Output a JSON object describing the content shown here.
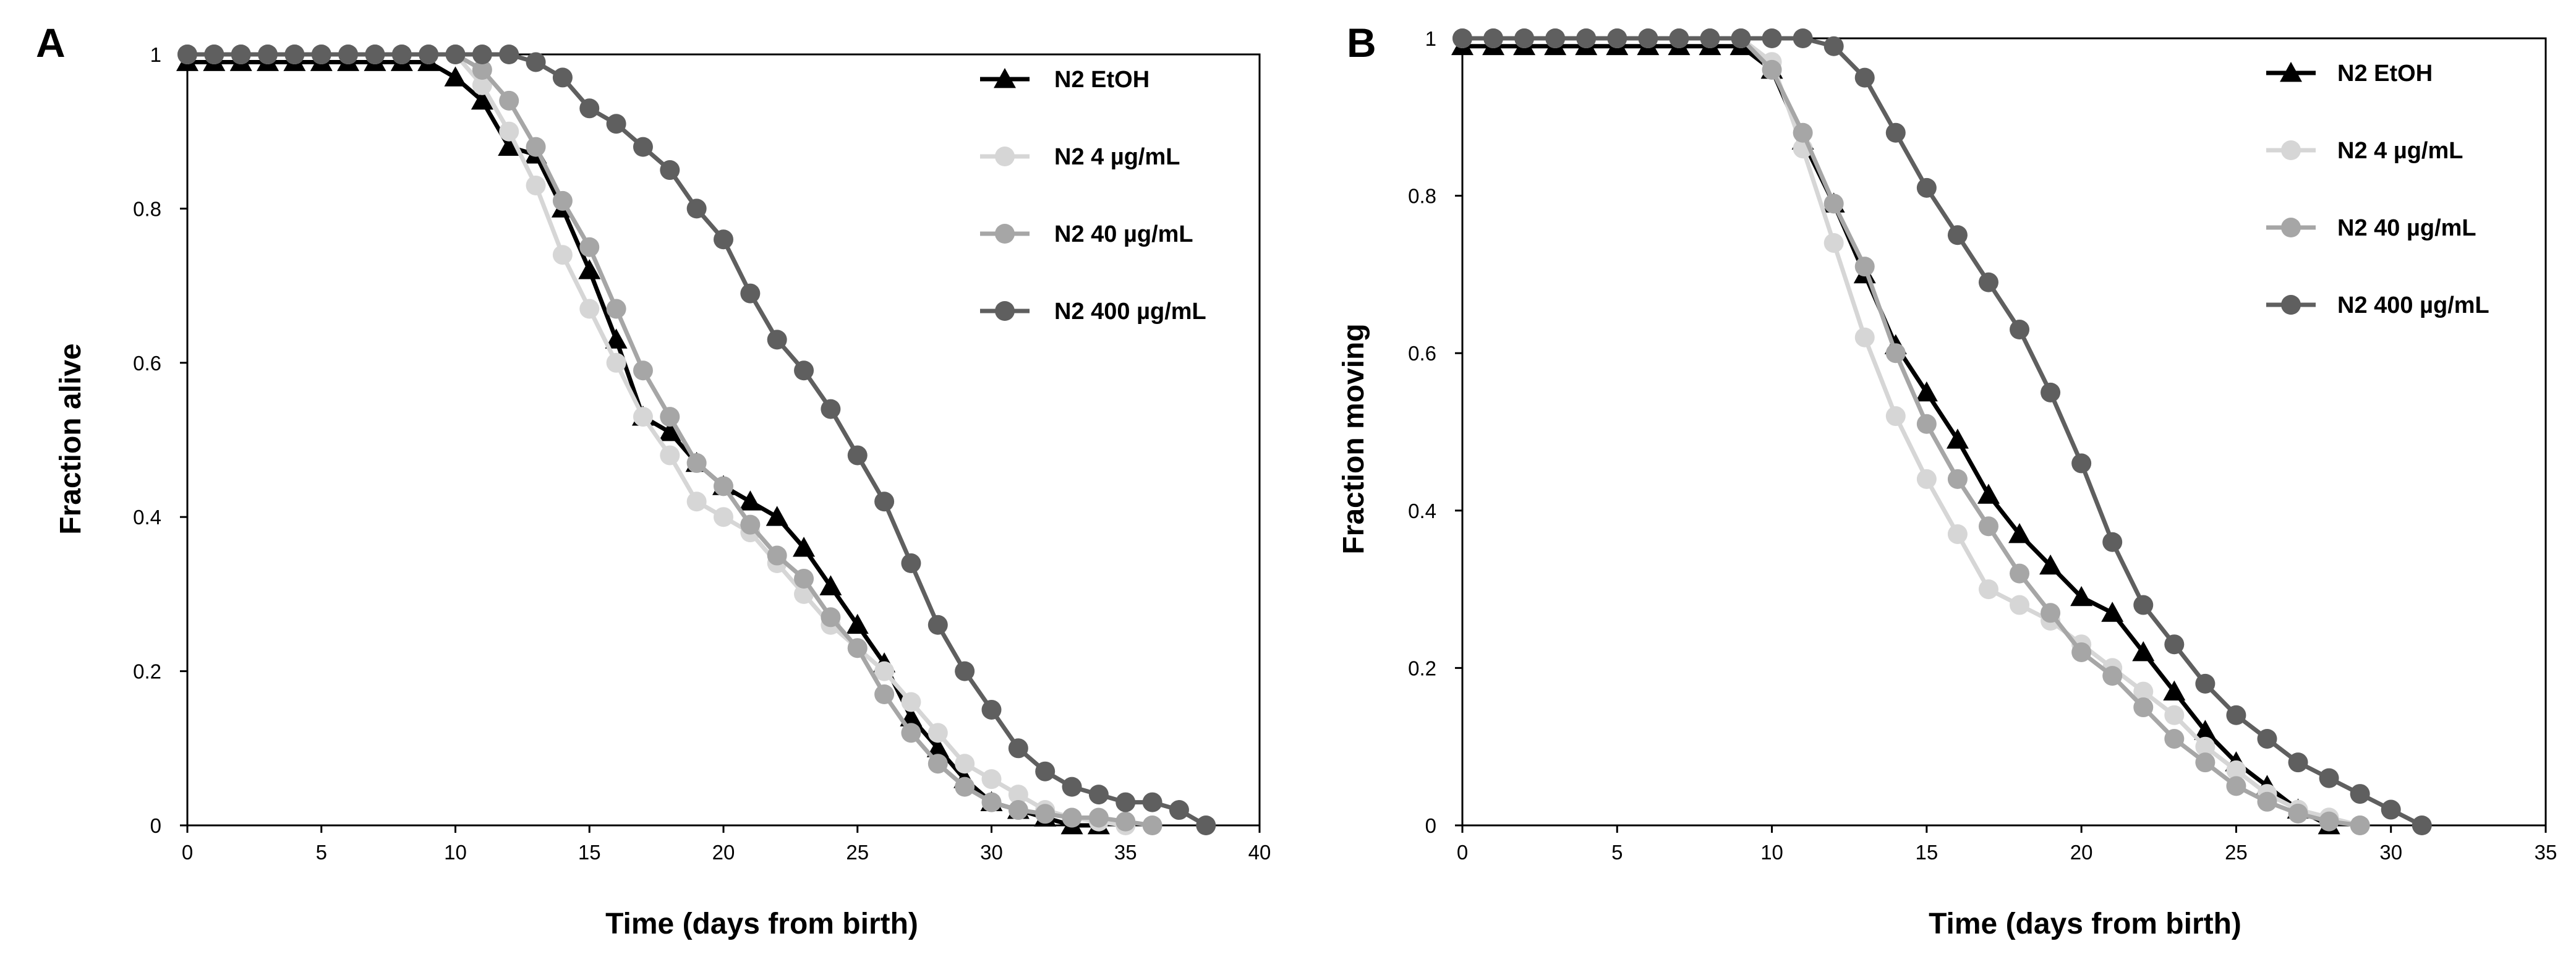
{
  "chart_data": [
    {
      "type": "line",
      "panel_label": "A",
      "title": "",
      "xlabel": "Time (days from birth)",
      "ylabel": "Fraction alive",
      "xlim": [
        0,
        40
      ],
      "ylim": [
        0,
        1
      ],
      "xticks": [
        0,
        5,
        10,
        15,
        20,
        25,
        30,
        35,
        40
      ],
      "yticks": [
        0,
        0.2,
        0.4,
        0.6,
        0.8,
        1
      ],
      "xtick_labels": [
        "0",
        "5",
        "10",
        "15",
        "20",
        "25",
        "30",
        "35",
        "40"
      ],
      "ytick_labels": [
        "0",
        "0.2",
        "0.4",
        "0.6",
        "0.8",
        "1"
      ],
      "grid": false,
      "legend_position": "top-right",
      "series": [
        {
          "name": "N2 EtOH",
          "color": "#000000",
          "marker": "triangle",
          "x": [
            0,
            1,
            2,
            3,
            4,
            5,
            6,
            7,
            8,
            9,
            10,
            11,
            12,
            13,
            14,
            15,
            16,
            17,
            18,
            19,
            20,
            21,
            22,
            23,
            24,
            25,
            26,
            27,
            28,
            29,
            30,
            31,
            32,
            33,
            34
          ],
          "y": [
            0.99,
            0.99,
            0.99,
            0.99,
            0.99,
            0.99,
            0.99,
            0.99,
            0.99,
            0.99,
            0.97,
            0.94,
            0.88,
            0.87,
            0.8,
            0.72,
            0.63,
            0.53,
            0.51,
            0.47,
            0.44,
            0.42,
            0.4,
            0.36,
            0.31,
            0.26,
            0.21,
            0.14,
            0.1,
            0.06,
            0.03,
            0.02,
            0.01,
            0.0,
            0.0
          ]
        },
        {
          "name": "N2 4 µg/mL",
          "color": "#d6d6d6",
          "marker": "circle",
          "x": [
            0,
            1,
            2,
            3,
            4,
            5,
            6,
            7,
            8,
            9,
            10,
            11,
            12,
            13,
            14,
            15,
            16,
            17,
            18,
            19,
            20,
            21,
            22,
            23,
            24,
            25,
            26,
            27,
            28,
            29,
            30,
            31,
            32,
            33,
            34,
            35
          ],
          "y": [
            1,
            1,
            1,
            1,
            1,
            1,
            1,
            1,
            1,
            1,
            1,
            0.96,
            0.9,
            0.83,
            0.74,
            0.67,
            0.6,
            0.53,
            0.48,
            0.42,
            0.4,
            0.38,
            0.34,
            0.3,
            0.26,
            0.23,
            0.2,
            0.16,
            0.12,
            0.08,
            0.06,
            0.04,
            0.02,
            0.01,
            0.005,
            0.0
          ]
        },
        {
          "name": "N2 40 µg/mL",
          "color": "#a6a6a6",
          "marker": "circle",
          "x": [
            0,
            1,
            2,
            3,
            4,
            5,
            6,
            7,
            8,
            9,
            10,
            11,
            12,
            13,
            14,
            15,
            16,
            17,
            18,
            19,
            20,
            21,
            22,
            23,
            24,
            25,
            26,
            27,
            28,
            29,
            30,
            31,
            32,
            33,
            34,
            35,
            36
          ],
          "y": [
            1,
            1,
            1,
            1,
            1,
            1,
            1,
            1,
            1,
            1,
            1,
            0.98,
            0.94,
            0.88,
            0.81,
            0.75,
            0.67,
            0.59,
            0.53,
            0.47,
            0.44,
            0.39,
            0.35,
            0.32,
            0.27,
            0.23,
            0.17,
            0.12,
            0.08,
            0.05,
            0.03,
            0.02,
            0.015,
            0.01,
            0.01,
            0.005,
            0.0
          ]
        },
        {
          "name": "N2 400 µg/mL",
          "color": "#5f5f5f",
          "marker": "circle",
          "x": [
            0,
            1,
            2,
            3,
            4,
            5,
            6,
            7,
            8,
            9,
            10,
            11,
            12,
            13,
            14,
            15,
            16,
            17,
            18,
            19,
            20,
            21,
            22,
            23,
            24,
            25,
            26,
            27,
            28,
            29,
            30,
            31,
            32,
            33,
            34,
            35,
            36,
            37,
            38
          ],
          "y": [
            1,
            1,
            1,
            1,
            1,
            1,
            1,
            1,
            1,
            1,
            1,
            1,
            1,
            0.99,
            0.97,
            0.93,
            0.91,
            0.88,
            0.85,
            0.8,
            0.76,
            0.69,
            0.63,
            0.59,
            0.54,
            0.48,
            0.42,
            0.34,
            0.26,
            0.2,
            0.15,
            0.1,
            0.07,
            0.05,
            0.04,
            0.03,
            0.03,
            0.02,
            0.0
          ]
        }
      ]
    },
    {
      "type": "line",
      "panel_label": "B",
      "title": "",
      "xlabel": "Time (days from birth)",
      "ylabel": "Fraction moving",
      "xlim": [
        0,
        35
      ],
      "ylim": [
        0,
        1
      ],
      "xticks": [
        0,
        5,
        10,
        15,
        20,
        25,
        30,
        35
      ],
      "yticks": [
        0,
        0.2,
        0.4,
        0.6,
        0.8,
        1
      ],
      "xtick_labels": [
        "0",
        "5",
        "10",
        "15",
        "20",
        "25",
        "30",
        "35"
      ],
      "ytick_labels": [
        "0",
        "0.2",
        "0.4",
        "0.6",
        "0.8",
        "1"
      ],
      "grid": false,
      "legend_position": "top-right",
      "series": [
        {
          "name": "N2 EtOH",
          "color": "#000000",
          "marker": "triangle",
          "x": [
            0,
            1,
            2,
            3,
            4,
            5,
            6,
            7,
            8,
            9,
            10,
            11,
            12,
            13,
            14,
            15,
            16,
            17,
            18,
            19,
            20,
            21,
            22,
            23,
            24,
            25,
            26,
            27,
            28
          ],
          "y": [
            0.99,
            0.99,
            0.99,
            0.99,
            0.99,
            0.99,
            0.99,
            0.99,
            0.99,
            0.99,
            0.96,
            0.87,
            0.79,
            0.7,
            0.61,
            0.55,
            0.49,
            0.42,
            0.37,
            0.33,
            0.29,
            0.27,
            0.22,
            0.17,
            0.12,
            0.08,
            0.05,
            0.02,
            0.0
          ]
        },
        {
          "name": "N2 4 µg/mL",
          "color": "#d6d6d6",
          "marker": "circle",
          "x": [
            0,
            1,
            2,
            3,
            4,
            5,
            6,
            7,
            8,
            9,
            10,
            11,
            12,
            13,
            14,
            15,
            16,
            17,
            18,
            19,
            20,
            21,
            22,
            23,
            24,
            25,
            26,
            27,
            28,
            29
          ],
          "y": [
            1,
            1,
            1,
            1,
            1,
            1,
            1,
            1,
            1,
            1,
            0.97,
            0.86,
            0.74,
            0.62,
            0.52,
            0.44,
            0.37,
            0.3,
            0.28,
            0.26,
            0.23,
            0.2,
            0.17,
            0.14,
            0.1,
            0.07,
            0.04,
            0.02,
            0.01,
            0.0
          ]
        },
        {
          "name": "N2 40 µg/mL",
          "color": "#a6a6a6",
          "marker": "circle",
          "x": [
            0,
            1,
            2,
            3,
            4,
            5,
            6,
            7,
            8,
            9,
            10,
            11,
            12,
            13,
            14,
            15,
            16,
            17,
            18,
            19,
            20,
            21,
            22,
            23,
            24,
            25,
            26,
            27,
            28,
            29
          ],
          "y": [
            1,
            1,
            1,
            1,
            1,
            1,
            1,
            1,
            1,
            1,
            0.96,
            0.88,
            0.79,
            0.71,
            0.6,
            0.51,
            0.44,
            0.38,
            0.32,
            0.27,
            0.22,
            0.19,
            0.15,
            0.11,
            0.08,
            0.05,
            0.03,
            0.015,
            0.005,
            0.0
          ]
        },
        {
          "name": "N2 400 µg/mL",
          "color": "#5f5f5f",
          "marker": "circle",
          "x": [
            0,
            1,
            2,
            3,
            4,
            5,
            6,
            7,
            8,
            9,
            10,
            11,
            12,
            13,
            14,
            15,
            16,
            17,
            18,
            19,
            20,
            21,
            22,
            23,
            24,
            25,
            26,
            27,
            28,
            29,
            30,
            31
          ],
          "y": [
            1,
            1,
            1,
            1,
            1,
            1,
            1,
            1,
            1,
            1,
            1,
            1,
            0.99,
            0.95,
            0.88,
            0.81,
            0.75,
            0.69,
            0.63,
            0.55,
            0.46,
            0.36,
            0.28,
            0.23,
            0.18,
            0.14,
            0.11,
            0.08,
            0.06,
            0.04,
            0.02,
            0.0
          ]
        }
      ]
    }
  ]
}
